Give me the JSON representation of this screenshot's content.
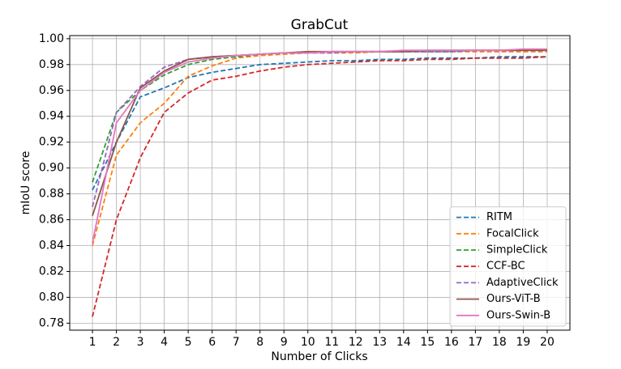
{
  "chart_data": {
    "type": "line",
    "title": "GrabCut",
    "xlabel": "Number of Clicks",
    "ylabel": "mIoU score",
    "x": [
      1,
      2,
      3,
      4,
      5,
      6,
      7,
      8,
      9,
      10,
      11,
      12,
      13,
      14,
      15,
      16,
      17,
      18,
      19,
      20
    ],
    "xlim": [
      0.05,
      20.95
    ],
    "xticks": [
      1,
      2,
      3,
      4,
      5,
      6,
      7,
      8,
      9,
      10,
      11,
      12,
      13,
      14,
      15,
      16,
      17,
      18,
      19,
      20
    ],
    "ylim": [
      0.7746,
      1.0024
    ],
    "yticks": [
      0.78,
      {
        "value": 0.8,
        "label": "0.80"
      },
      0.82,
      0.84,
      0.86,
      0.88,
      {
        "value": 0.9,
        "label": "0.90"
      },
      0.92,
      0.94,
      0.96,
      0.98,
      {
        "value": 1.0,
        "label": "1.00"
      }
    ],
    "grid": true,
    "legend": "lower right",
    "series": [
      {
        "name": "RITM",
        "color": "#1f77b4",
        "linestyle": "dashed",
        "values": [
          0.883,
          0.92,
          0.955,
          0.962,
          0.97,
          0.974,
          0.977,
          0.98,
          0.981,
          0.982,
          0.983,
          0.983,
          0.984,
          0.984,
          0.985,
          0.985,
          0.985,
          0.986,
          0.986,
          0.986
        ]
      },
      {
        "name": "FocalClick",
        "color": "#ff7f0e",
        "linestyle": "dashed",
        "values": [
          0.84,
          0.91,
          0.935,
          0.95,
          0.971,
          0.979,
          0.985,
          0.987,
          0.988,
          0.989,
          0.989,
          0.989,
          0.99,
          0.99,
          0.99,
          0.99,
          0.99,
          0.99,
          0.99,
          0.99
        ]
      },
      {
        "name": "SimpleClick",
        "color": "#2ca02c",
        "linestyle": "dashed",
        "values": [
          0.889,
          0.943,
          0.96,
          0.972,
          0.98,
          0.984,
          0.986,
          0.988,
          0.989,
          0.989,
          0.99,
          0.99,
          0.99,
          0.99,
          0.99,
          0.99,
          0.991,
          0.991,
          0.991,
          0.991
        ]
      },
      {
        "name": "CCF-BC",
        "color": "#d62728",
        "linestyle": "dashed",
        "values": [
          0.785,
          0.86,
          0.908,
          0.943,
          0.958,
          0.968,
          0.971,
          0.975,
          0.978,
          0.98,
          0.981,
          0.982,
          0.983,
          0.983,
          0.984,
          0.984,
          0.985,
          0.985,
          0.985,
          0.986
        ]
      },
      {
        "name": "AdaptiveClick",
        "color": "#9467bd",
        "linestyle": "dashed",
        "values": [
          0.87,
          0.943,
          0.963,
          0.978,
          0.984,
          0.986,
          0.987,
          0.988,
          0.989,
          0.989,
          0.989,
          0.99,
          0.99,
          0.99,
          0.99,
          0.99,
          0.991,
          0.991,
          0.991,
          0.991
        ]
      },
      {
        "name": "Ours-ViT-B",
        "color": "#8c564b",
        "linestyle": "solid",
        "values": [
          0.863,
          0.92,
          0.962,
          0.975,
          0.984,
          0.986,
          0.987,
          0.988,
          0.989,
          0.99,
          0.99,
          0.99,
          0.99,
          0.99,
          0.991,
          0.991,
          0.991,
          0.991,
          0.991,
          0.991
        ]
      },
      {
        "name": "Ours-Swin-B",
        "color": "#e377c2",
        "linestyle": "solid",
        "values": [
          0.842,
          0.935,
          0.96,
          0.974,
          0.982,
          0.985,
          0.987,
          0.988,
          0.989,
          0.989,
          0.99,
          0.99,
          0.99,
          0.991,
          0.991,
          0.991,
          0.991,
          0.991,
          0.992,
          0.992
        ]
      }
    ]
  }
}
